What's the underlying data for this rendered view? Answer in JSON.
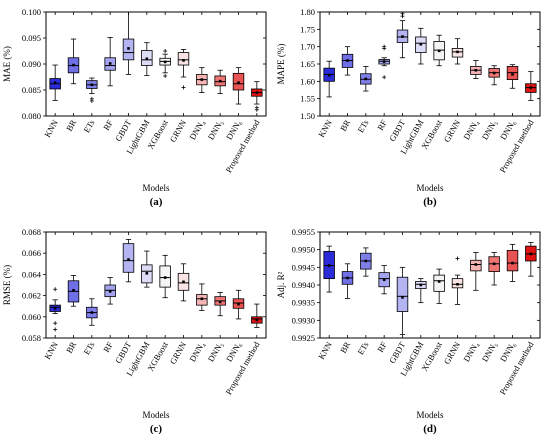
{
  "figure_labels": [
    "(a)",
    "(b)",
    "(c)",
    "(d)"
  ],
  "chart_data": [
    {
      "type": "box",
      "panel_label": "(a)",
      "xlabel": "Models",
      "ylabel": "MAE (%)",
      "ylim": [
        0.08,
        0.1
      ],
      "yticks": [
        "0.080",
        "0.085",
        "0.090",
        "0.095",
        "0.100"
      ],
      "categories": [
        "KNN",
        "BR",
        "ETs",
        "RF",
        "GBDT",
        "LightGBM",
        "XGBoost",
        "GRNN",
        "DNN₄",
        "DNN₅",
        "DNN₆",
        "Proposed method"
      ],
      "colors": [
        "#2b2bd9",
        "#6f6fe6",
        "#7f7fea",
        "#a3a3f0",
        "#b4b4f2",
        "#dcdcf7",
        "#f4f4f4",
        "#f9e3e3",
        "#f5b3b3",
        "#ef7575",
        "#ea5353",
        "#e11414"
      ],
      "boxes": [
        {
          "min": 0.083,
          "q1": 0.0852,
          "median": 0.0862,
          "q3": 0.0872,
          "max": 0.0898,
          "mean": 0.0864,
          "outliers": []
        },
        {
          "min": 0.0862,
          "q1": 0.0883,
          "median": 0.0897,
          "q3": 0.0912,
          "max": 0.0948,
          "mean": 0.0898,
          "outliers": []
        },
        {
          "min": 0.0843,
          "q1": 0.0853,
          "median": 0.086,
          "q3": 0.0868,
          "max": 0.0873,
          "mean": 0.086,
          "outliers": [
            0.0833,
            0.0829
          ]
        },
        {
          "min": 0.0858,
          "q1": 0.0888,
          "median": 0.0897,
          "q3": 0.0912,
          "max": 0.0951,
          "mean": 0.0901,
          "outliers": []
        },
        {
          "min": 0.088,
          "q1": 0.0908,
          "median": 0.0922,
          "q3": 0.0948,
          "max": 0.1,
          "mean": 0.093,
          "outliers": []
        },
        {
          "min": 0.0878,
          "q1": 0.0897,
          "median": 0.0908,
          "q3": 0.0926,
          "max": 0.0941,
          "mean": 0.091,
          "outliers": []
        },
        {
          "min": 0.0883,
          "q1": 0.0898,
          "median": 0.0905,
          "q3": 0.0911,
          "max": 0.0919,
          "mean": 0.0904,
          "outliers": [
            0.0925,
            0.0877
          ]
        },
        {
          "min": 0.0875,
          "q1": 0.0898,
          "median": 0.0908,
          "q3": 0.0922,
          "max": 0.0928,
          "mean": 0.0907,
          "outliers": [
            0.0855
          ]
        },
        {
          "min": 0.0845,
          "q1": 0.086,
          "median": 0.087,
          "q3": 0.088,
          "max": 0.0893,
          "mean": 0.087,
          "outliers": []
        },
        {
          "min": 0.0843,
          "q1": 0.0858,
          "median": 0.0866,
          "q3": 0.0877,
          "max": 0.0888,
          "mean": 0.0867,
          "outliers": []
        },
        {
          "min": 0.0823,
          "q1": 0.085,
          "median": 0.0862,
          "q3": 0.0882,
          "max": 0.0893,
          "mean": 0.0864,
          "outliers": []
        },
        {
          "min": 0.0823,
          "q1": 0.0838,
          "median": 0.0845,
          "q3": 0.0852,
          "max": 0.0866,
          "mean": 0.0845,
          "outliers": [
            0.0816,
            0.0812
          ]
        }
      ]
    },
    {
      "type": "box",
      "panel_label": "(b)",
      "xlabel": "Models",
      "ylabel": "MAPE (%)",
      "ylim": [
        1.5,
        1.8
      ],
      "yticks": [
        "1.50",
        "1.55",
        "1.60",
        "1.65",
        "1.70",
        "1.75",
        "1.80"
      ],
      "categories": [
        "KNN",
        "BR",
        "ETs",
        "RF",
        "GBDT",
        "LightGBM",
        "XGBoost",
        "GRNN",
        "DNN₄",
        "DNN₅",
        "DNN₆",
        "Proposed method"
      ],
      "colors": [
        "#2b2bd9",
        "#6f6fe6",
        "#7f7fea",
        "#a3a3f0",
        "#b4b4f2",
        "#dcdcf7",
        "#f4f4f4",
        "#f9e3e3",
        "#f5b3b3",
        "#ef7575",
        "#ea5353",
        "#e11414"
      ],
      "boxes": [
        {
          "min": 1.555,
          "q1": 1.6,
          "median": 1.62,
          "q3": 1.638,
          "max": 1.658,
          "mean": 1.618,
          "outliers": []
        },
        {
          "min": 1.618,
          "q1": 1.64,
          "median": 1.66,
          "q3": 1.678,
          "max": 1.7,
          "mean": 1.66,
          "outliers": []
        },
        {
          "min": 1.572,
          "q1": 1.592,
          "median": 1.606,
          "q3": 1.622,
          "max": 1.643,
          "mean": 1.607,
          "outliers": []
        },
        {
          "min": 1.645,
          "q1": 1.65,
          "median": 1.658,
          "q3": 1.663,
          "max": 1.668,
          "mean": 1.657,
          "outliers": [
            1.7,
            1.695,
            1.612
          ]
        },
        {
          "min": 1.668,
          "q1": 1.712,
          "median": 1.728,
          "q3": 1.748,
          "max": 1.775,
          "mean": 1.729,
          "outliers": [
            1.795,
            1.788
          ]
        },
        {
          "min": 1.65,
          "q1": 1.683,
          "median": 1.71,
          "q3": 1.728,
          "max": 1.753,
          "mean": 1.707,
          "outliers": []
        },
        {
          "min": 1.645,
          "q1": 1.662,
          "median": 1.69,
          "q3": 1.715,
          "max": 1.733,
          "mean": 1.688,
          "outliers": []
        },
        {
          "min": 1.65,
          "q1": 1.67,
          "median": 1.685,
          "q3": 1.695,
          "max": 1.723,
          "mean": 1.685,
          "outliers": []
        },
        {
          "min": 1.608,
          "q1": 1.62,
          "median": 1.632,
          "q3": 1.643,
          "max": 1.66,
          "mean": 1.632,
          "outliers": []
        },
        {
          "min": 1.59,
          "q1": 1.612,
          "median": 1.625,
          "q3": 1.637,
          "max": 1.645,
          "mean": 1.624,
          "outliers": []
        },
        {
          "min": 1.58,
          "q1": 1.605,
          "median": 1.625,
          "q3": 1.643,
          "max": 1.648,
          "mean": 1.62,
          "outliers": []
        },
        {
          "min": 1.545,
          "q1": 1.568,
          "median": 1.582,
          "q3": 1.593,
          "max": 1.628,
          "mean": 1.582,
          "outliers": []
        }
      ]
    },
    {
      "type": "box",
      "panel_label": "(c)",
      "xlabel": "Models",
      "ylabel": "RMSE (%)",
      "ylim": [
        0.058,
        0.068
      ],
      "yticks": [
        "0.058",
        "0.060",
        "0.062",
        "0.064",
        "0.066",
        "0.068"
      ],
      "categories": [
        "KNN",
        "BR",
        "ETs",
        "RF",
        "GBDT",
        "LightGBM",
        "XGBoost",
        "GRNN",
        "DNN₄",
        "DNN₅",
        "DNN₆",
        "Proposed method"
      ],
      "colors": [
        "#2b2bd9",
        "#6f6fe6",
        "#7f7fea",
        "#a3a3f0",
        "#b4b4f2",
        "#dcdcf7",
        "#f4f4f4",
        "#f9e3e3",
        "#f5b3b3",
        "#ef7575",
        "#ea5353",
        "#e11414"
      ],
      "boxes": [
        {
          "min": 0.0603,
          "q1": 0.0605,
          "median": 0.0609,
          "q3": 0.0611,
          "max": 0.0616,
          "mean": 0.0608,
          "outliers": [
            0.0626,
            0.0594,
            0.0588
          ]
        },
        {
          "min": 0.061,
          "q1": 0.0614,
          "median": 0.0624,
          "q3": 0.0634,
          "max": 0.0639,
          "mean": 0.0625,
          "outliers": []
        },
        {
          "min": 0.0592,
          "q1": 0.0599,
          "median": 0.0604,
          "q3": 0.0609,
          "max": 0.0617,
          "mean": 0.0604,
          "outliers": []
        },
        {
          "min": 0.0612,
          "q1": 0.0619,
          "median": 0.0625,
          "q3": 0.063,
          "max": 0.0637,
          "mean": 0.0624,
          "outliers": []
        },
        {
          "min": 0.0633,
          "q1": 0.0642,
          "median": 0.0653,
          "q3": 0.0669,
          "max": 0.0673,
          "mean": 0.0654,
          "outliers": []
        },
        {
          "min": 0.0628,
          "q1": 0.0632,
          "median": 0.0643,
          "q3": 0.0649,
          "max": 0.0662,
          "mean": 0.0641,
          "outliers": []
        },
        {
          "min": 0.0618,
          "q1": 0.0628,
          "median": 0.0637,
          "q3": 0.0648,
          "max": 0.0658,
          "mean": 0.0637,
          "outliers": []
        },
        {
          "min": 0.0615,
          "q1": 0.0625,
          "median": 0.0632,
          "q3": 0.0641,
          "max": 0.065,
          "mean": 0.0633,
          "outliers": []
        },
        {
          "min": 0.0606,
          "q1": 0.0611,
          "median": 0.0617,
          "q3": 0.0621,
          "max": 0.0631,
          "mean": 0.0617,
          "outliers": []
        },
        {
          "min": 0.0601,
          "q1": 0.0611,
          "median": 0.0615,
          "q3": 0.0619,
          "max": 0.0623,
          "mean": 0.0614,
          "outliers": []
        },
        {
          "min": 0.0598,
          "q1": 0.0608,
          "median": 0.0613,
          "q3": 0.0617,
          "max": 0.0625,
          "mean": 0.0612,
          "outliers": []
        },
        {
          "min": 0.059,
          "q1": 0.0594,
          "median": 0.0598,
          "q3": 0.06,
          "max": 0.0612,
          "mean": 0.0597,
          "outliers": []
        }
      ]
    },
    {
      "type": "box",
      "panel_label": "(d)",
      "xlabel": "Models",
      "ylabel": "Adj. R²",
      "ylim": [
        0.9925,
        0.9955
      ],
      "yticks": [
        "0.9925",
        "0.9930",
        "0.9935",
        "0.9940",
        "0.9945",
        "0.9950",
        "0.9955"
      ],
      "categories": [
        "KNN",
        "BR",
        "ETs",
        "RF",
        "GBDT",
        "LightGBM",
        "XGBoost",
        "GRNN",
        "DNN₄",
        "DNN₅",
        "DNN₆",
        "Proposed method"
      ],
      "colors": [
        "#2b2bd9",
        "#6f6fe6",
        "#7f7fea",
        "#a3a3f0",
        "#b4b4f2",
        "#dcdcf7",
        "#f4f4f4",
        "#f9e3e3",
        "#f5b3b3",
        "#ef7575",
        "#ea5353",
        "#e11414"
      ],
      "boxes": [
        {
          "min": 0.9938,
          "q1": 0.99418,
          "median": 0.99455,
          "q3": 0.99495,
          "max": 0.9951,
          "mean": 0.99455,
          "outliers": []
        },
        {
          "min": 0.99362,
          "q1": 0.99402,
          "median": 0.9942,
          "q3": 0.99438,
          "max": 0.9946,
          "mean": 0.9942,
          "outliers": []
        },
        {
          "min": 0.99425,
          "q1": 0.99445,
          "median": 0.99468,
          "q3": 0.9949,
          "max": 0.99505,
          "mean": 0.99468,
          "outliers": []
        },
        {
          "min": 0.99375,
          "q1": 0.99395,
          "median": 0.99418,
          "q3": 0.99435,
          "max": 0.99455,
          "mean": 0.99415,
          "outliers": []
        },
        {
          "min": 0.9926,
          "q1": 0.99325,
          "median": 0.99368,
          "q3": 0.99422,
          "max": 0.9945,
          "mean": 0.99365,
          "outliers": []
        },
        {
          "min": 0.9935,
          "q1": 0.9939,
          "median": 0.99402,
          "q3": 0.9941,
          "max": 0.99418,
          "mean": 0.994,
          "outliers": []
        },
        {
          "min": 0.99348,
          "q1": 0.99382,
          "median": 0.99412,
          "q3": 0.99428,
          "max": 0.99445,
          "mean": 0.9941,
          "outliers": []
        },
        {
          "min": 0.99345,
          "q1": 0.99392,
          "median": 0.99402,
          "q3": 0.99418,
          "max": 0.99428,
          "mean": 0.99402,
          "outliers": [
            0.99475
          ]
        },
        {
          "min": 0.99385,
          "q1": 0.9944,
          "median": 0.99458,
          "q3": 0.9947,
          "max": 0.99492,
          "mean": 0.99458,
          "outliers": []
        },
        {
          "min": 0.994,
          "q1": 0.99438,
          "median": 0.9946,
          "q3": 0.9948,
          "max": 0.99492,
          "mean": 0.9946,
          "outliers": []
        },
        {
          "min": 0.9941,
          "q1": 0.9944,
          "median": 0.99462,
          "q3": 0.99498,
          "max": 0.99515,
          "mean": 0.99462,
          "outliers": []
        },
        {
          "min": 0.99425,
          "q1": 0.99468,
          "median": 0.99488,
          "q3": 0.9951,
          "max": 0.9952,
          "mean": 0.99488,
          "outliers": []
        }
      ]
    }
  ]
}
